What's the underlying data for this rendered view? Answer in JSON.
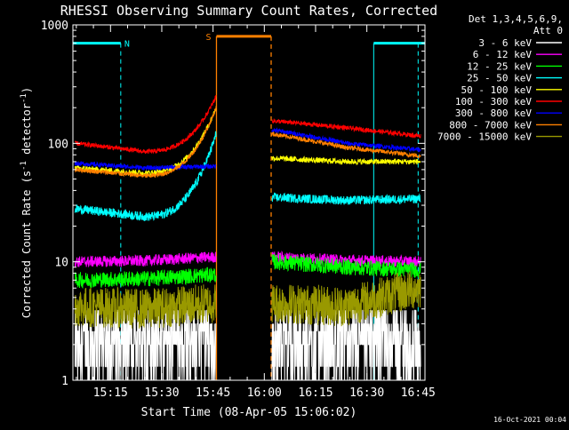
{
  "chart_data": {
    "type": "line",
    "title": "RHESSI Observing Summary Count Rates, Corrected",
    "xlabel": "Start Time (08-Apr-05 15:06:02)",
    "ylabel_main": "Corrected Count Rate (s",
    "ylabel_sup1": "-1",
    "ylabel_mid": " detector",
    "ylabel_sup2": "-1",
    "ylabel_end": ")",
    "yscale": "log",
    "ylim": [
      1,
      1000
    ],
    "xlim_minutes": [
      904,
      1007
    ],
    "x_ticks": [
      {
        "t": 915,
        "label": "15:15"
      },
      {
        "t": 930,
        "label": "15:30"
      },
      {
        "t": 945,
        "label": "15:45"
      },
      {
        "t": 960,
        "label": "16:00"
      },
      {
        "t": 975,
        "label": "16:15"
      },
      {
        "t": 990,
        "label": "16:30"
      },
      {
        "t": 1005,
        "label": "16:45"
      }
    ],
    "y_ticks": [
      {
        "v": 1,
        "label": "1"
      },
      {
        "v": 10,
        "label": "10"
      },
      {
        "v": 100,
        "label": "100"
      },
      {
        "v": 1000,
        "label": "1000"
      }
    ],
    "legend_header": [
      "Det 1,3,4,5,6,9,",
      "Att 0"
    ],
    "timestamp": "16-Oct-2021 00:04",
    "flags": [
      {
        "label": "N",
        "color": "#00ffff",
        "level": 700,
        "segments": [
          [
            904,
            918
          ],
          [
            992,
            1007
          ]
        ],
        "edges": [
          918,
          992,
          1005
        ]
      },
      {
        "label": "S",
        "color": "#ff8000",
        "level": 800,
        "segments": [
          [
            946,
            962
          ]
        ],
        "edges": [
          946,
          962
        ]
      }
    ],
    "gap_minutes": [
      946,
      962
    ],
    "series": [
      {
        "name": "3 - 6 keV",
        "color": "#ffffff",
        "v1": [
          2.2,
          2.4,
          2.0
        ],
        "v2": [
          2.0,
          2.1,
          2.2
        ],
        "noise": 0.45
      },
      {
        "name": "6 - 12 keV",
        "color": "#ff00ff",
        "v1": [
          10.0,
          10.2,
          11.0
        ],
        "v2": [
          11.0,
          10.3,
          10.0
        ],
        "noise": 0.05
      },
      {
        "name": "12 - 25 keV",
        "color": "#00ff00",
        "v1": [
          7.0,
          7.2,
          7.8
        ],
        "v2": [
          10.0,
          9.0,
          8.5
        ],
        "noise": 0.07
      },
      {
        "name": "25 - 50 keV",
        "color": "#00ffff",
        "v1": [
          28.0,
          24.0,
          120.0
        ],
        "v2": [
          35.0,
          33.0,
          34.0
        ],
        "noise": 0.04
      },
      {
        "name": "50 - 100 keV",
        "color": "#ffff00",
        "v1": [
          62.0,
          56.0,
          200.0
        ],
        "v2": [
          75.0,
          70.0,
          70.0
        ],
        "noise": 0.025
      },
      {
        "name": "100 - 300 keV",
        "color": "#ff0000",
        "v1": [
          100.0,
          85.0,
          250.0
        ],
        "v2": [
          155.0,
          135.0,
          115.0
        ],
        "noise": 0.02
      },
      {
        "name": "300 - 800 keV",
        "color": "#0000ff",
        "v1": [
          68.0,
          62.0,
          64.0
        ],
        "v2": [
          130.0,
          100.0,
          88.0
        ],
        "noise": 0.02
      },
      {
        "name": "800 - 7000 keV",
        "color": "#ff8000",
        "v1": [
          60.0,
          53.0,
          200.0
        ],
        "v2": [
          120.0,
          92.0,
          78.0
        ],
        "noise": 0.02
      },
      {
        "name": "7000 - 15000 keV",
        "color": "#999900",
        "v1": [
          4.2,
          4.0,
          4.5
        ],
        "v2": [
          4.5,
          4.2,
          6.0
        ],
        "noise": 0.18
      }
    ]
  }
}
